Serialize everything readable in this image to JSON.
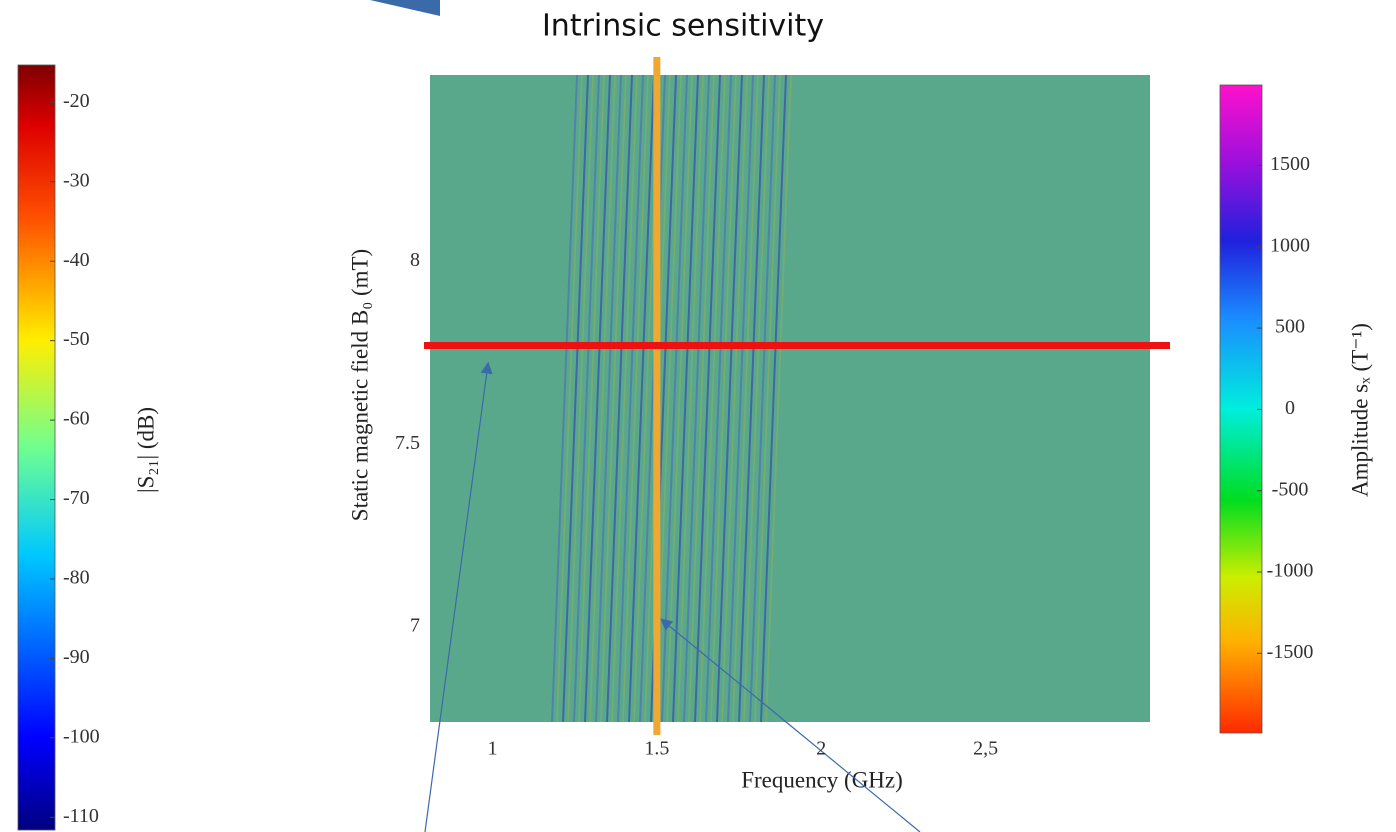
{
  "chart_data": {
    "type": "heatmap",
    "title": "Intrinsic sensitivity",
    "xlabel": "Frequency (GHz)",
    "ylabel": "Static magnetic field B₀ (mT)",
    "xlim": [
      0.81,
      3.0
    ],
    "xticks": [
      1,
      {
        "value": 1.5,
        "label": "1.5"
      },
      2,
      {
        "value": 2.5,
        "label": "2,5"
      }
    ],
    "ylim": [
      6.74,
      8.51
    ],
    "yticks": [
      7,
      7.5,
      8
    ],
    "hline": {
      "value": 7.77,
      "color": "#ee1111"
    },
    "vline": {
      "value": 1.5,
      "color": "#f0a830"
    },
    "colorbars": [
      {
        "label": "|S₂₁| (dB)",
        "lim": [
          -111.6,
          -15.3
        ],
        "ticks": [
          -110,
          -100,
          -90,
          -80,
          -70,
          -60,
          -50,
          -40,
          -30,
          -20
        ],
        "colormap": "jet"
      },
      {
        "label": "Amplitude sₓ (T⁻¹)",
        "lim": [
          -1990,
          1995
        ],
        "ticks": [
          -1500,
          -1000,
          -500,
          0,
          500,
          1000,
          1500
        ],
        "colormap": "hsv"
      }
    ]
  }
}
